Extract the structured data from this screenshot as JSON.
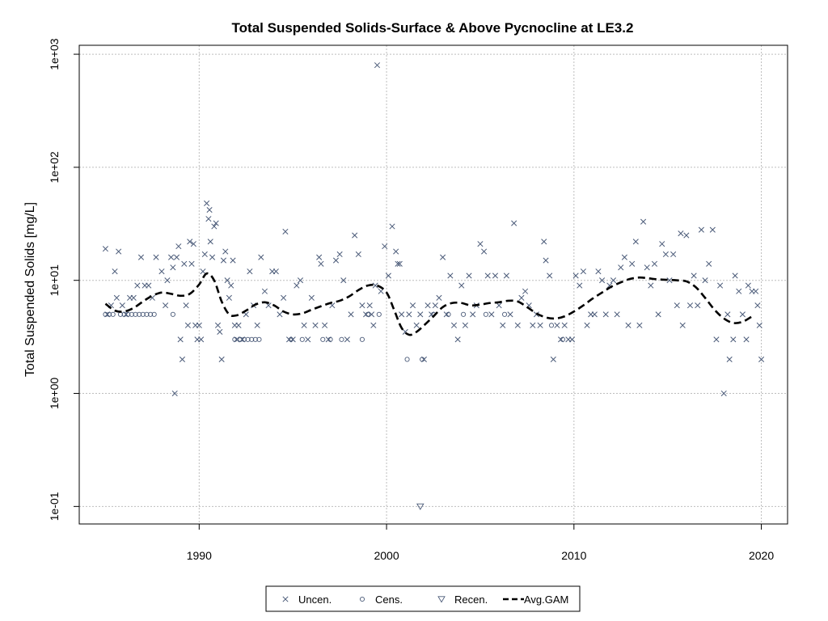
{
  "chart_data": {
    "type": "scatter",
    "title": "Total Suspended Solids-Surface & Above Pycnocline at LE3.2",
    "xlabel": "",
    "ylabel": "Total Suspended Solids [mg/L]",
    "xlim": [
      1983.6,
      2021.4
    ],
    "ylim": [
      0.07,
      1200
    ],
    "y_scale": "log",
    "x_ticks": [
      1990,
      2000,
      2010,
      2020
    ],
    "x_tick_labels": [
      "1990",
      "2000",
      "2010",
      "2020"
    ],
    "y_ticks": [
      0.1,
      1,
      10,
      100,
      1000
    ],
    "y_tick_labels": [
      "1e-01",
      "1e+00",
      "1e+01",
      "1e+02",
      "1e+03"
    ],
    "grid": true,
    "legend_position": "bottom",
    "colors": {
      "points": "#4a5a78",
      "gam": "#000000",
      "grid": "#bdbdbd"
    },
    "legend": [
      {
        "label": "Uncen.",
        "symbol": "x"
      },
      {
        "label": "Cens.",
        "symbol": "circle"
      },
      {
        "label": "Recen.",
        "symbol": "triangle-down"
      },
      {
        "label": "Avg.GAM",
        "symbol": "dashed-line"
      }
    ],
    "series": [
      {
        "name": "Uncen.",
        "marker": "x",
        "points": [
          [
            1985.0,
            19
          ],
          [
            1985.1,
            5
          ],
          [
            1985.3,
            6
          ],
          [
            1985.5,
            12
          ],
          [
            1985.6,
            7
          ],
          [
            1985.7,
            18
          ],
          [
            1985.9,
            6
          ],
          [
            1986.1,
            5
          ],
          [
            1986.3,
            7
          ],
          [
            1986.5,
            7
          ],
          [
            1986.7,
            9
          ],
          [
            1986.9,
            16
          ],
          [
            1987.1,
            9
          ],
          [
            1987.3,
            9
          ],
          [
            1987.5,
            7
          ],
          [
            1987.7,
            16
          ],
          [
            1988.0,
            12
          ],
          [
            1988.2,
            6
          ],
          [
            1988.3,
            10
          ],
          [
            1988.5,
            16
          ],
          [
            1988.6,
            13
          ],
          [
            1988.7,
            1
          ],
          [
            1988.8,
            16
          ],
          [
            1988.9,
            20
          ],
          [
            1989.0,
            3
          ],
          [
            1989.1,
            2
          ],
          [
            1989.2,
            14
          ],
          [
            1989.3,
            6
          ],
          [
            1989.4,
            4
          ],
          [
            1989.5,
            22
          ],
          [
            1989.6,
            14
          ],
          [
            1989.7,
            21
          ],
          [
            1989.8,
            4
          ],
          [
            1989.9,
            3
          ],
          [
            1990.0,
            4
          ],
          [
            1990.1,
            3
          ],
          [
            1990.2,
            12
          ],
          [
            1990.3,
            17
          ],
          [
            1990.4,
            48
          ],
          [
            1990.5,
            35
          ],
          [
            1990.55,
            42
          ],
          [
            1990.6,
            22
          ],
          [
            1990.7,
            16
          ],
          [
            1990.8,
            30
          ],
          [
            1990.9,
            32
          ],
          [
            1991.0,
            4
          ],
          [
            1991.1,
            3.5
          ],
          [
            1991.2,
            2
          ],
          [
            1991.3,
            15
          ],
          [
            1991.4,
            18
          ],
          [
            1991.5,
            10
          ],
          [
            1991.6,
            7
          ],
          [
            1991.7,
            9
          ],
          [
            1991.8,
            15
          ],
          [
            1991.9,
            4
          ],
          [
            1992.0,
            3
          ],
          [
            1992.1,
            4
          ],
          [
            1992.3,
            3
          ],
          [
            1992.5,
            5
          ],
          [
            1992.7,
            12
          ],
          [
            1992.9,
            6
          ],
          [
            1993.1,
            4
          ],
          [
            1993.3,
            16
          ],
          [
            1993.5,
            8
          ],
          [
            1993.7,
            6
          ],
          [
            1993.9,
            12
          ],
          [
            1994.1,
            12
          ],
          [
            1994.3,
            5
          ],
          [
            1994.5,
            7
          ],
          [
            1994.6,
            27
          ],
          [
            1994.8,
            3
          ],
          [
            1995.0,
            3
          ],
          [
            1995.2,
            9
          ],
          [
            1995.4,
            10
          ],
          [
            1995.6,
            4
          ],
          [
            1995.8,
            3
          ],
          [
            1996.0,
            7
          ],
          [
            1996.2,
            4
          ],
          [
            1996.4,
            16
          ],
          [
            1996.5,
            14
          ],
          [
            1996.7,
            4
          ],
          [
            1996.9,
            3
          ],
          [
            1997.1,
            6
          ],
          [
            1997.3,
            15
          ],
          [
            1997.5,
            17
          ],
          [
            1997.7,
            10
          ],
          [
            1997.9,
            3
          ],
          [
            1998.1,
            5
          ],
          [
            1998.3,
            25
          ],
          [
            1998.5,
            17
          ],
          [
            1998.7,
            6
          ],
          [
            1998.9,
            5
          ],
          [
            1999.1,
            6
          ],
          [
            1999.2,
            5
          ],
          [
            1999.3,
            4
          ],
          [
            1999.4,
            9
          ],
          [
            1999.5,
            800
          ],
          [
            1999.7,
            8
          ],
          [
            1999.9,
            20
          ],
          [
            2000.1,
            11
          ],
          [
            2000.3,
            30
          ],
          [
            2000.5,
            18
          ],
          [
            2000.6,
            14
          ],
          [
            2000.7,
            14
          ],
          [
            2000.8,
            5
          ],
          [
            2001.0,
            3.5
          ],
          [
            2001.2,
            5
          ],
          [
            2001.4,
            6
          ],
          [
            2001.6,
            4
          ],
          [
            2001.8,
            5
          ],
          [
            2002.0,
            2
          ],
          [
            2002.2,
            6
          ],
          [
            2002.4,
            5
          ],
          [
            2002.6,
            6
          ],
          [
            2002.8,
            7
          ],
          [
            2003.0,
            16
          ],
          [
            2003.2,
            5
          ],
          [
            2003.4,
            11
          ],
          [
            2003.6,
            4
          ],
          [
            2003.8,
            3
          ],
          [
            2004.0,
            9
          ],
          [
            2004.2,
            4
          ],
          [
            2004.4,
            11
          ],
          [
            2004.6,
            5
          ],
          [
            2004.8,
            6
          ],
          [
            2005.0,
            21
          ],
          [
            2005.2,
            18
          ],
          [
            2005.4,
            11
          ],
          [
            2005.6,
            5
          ],
          [
            2005.8,
            11
          ],
          [
            2006.0,
            6
          ],
          [
            2006.2,
            4
          ],
          [
            2006.4,
            11
          ],
          [
            2006.6,
            5
          ],
          [
            2006.8,
            32
          ],
          [
            2007.0,
            4
          ],
          [
            2007.2,
            7
          ],
          [
            2007.4,
            8
          ],
          [
            2007.6,
            6
          ],
          [
            2007.8,
            4
          ],
          [
            2008.0,
            5
          ],
          [
            2008.2,
            4
          ],
          [
            2008.4,
            22
          ],
          [
            2008.5,
            15
          ],
          [
            2008.7,
            11
          ],
          [
            2008.9,
            2
          ],
          [
            2009.1,
            4
          ],
          [
            2009.3,
            3
          ],
          [
            2009.5,
            4
          ],
          [
            2009.7,
            3
          ],
          [
            2009.9,
            3
          ],
          [
            2010.1,
            11
          ],
          [
            2010.3,
            9
          ],
          [
            2010.5,
            12
          ],
          [
            2010.7,
            4
          ],
          [
            2010.9,
            5
          ],
          [
            2011.1,
            5
          ],
          [
            2011.3,
            12
          ],
          [
            2011.5,
            10
          ],
          [
            2011.7,
            5
          ],
          [
            2011.9,
            9
          ],
          [
            2012.1,
            10
          ],
          [
            2012.3,
            5
          ],
          [
            2012.5,
            13
          ],
          [
            2012.7,
            16
          ],
          [
            2012.9,
            4
          ],
          [
            2013.1,
            14
          ],
          [
            2013.3,
            22
          ],
          [
            2013.5,
            4
          ],
          [
            2013.7,
            33
          ],
          [
            2013.9,
            13
          ],
          [
            2014.1,
            9
          ],
          [
            2014.3,
            14
          ],
          [
            2014.5,
            5
          ],
          [
            2014.7,
            21
          ],
          [
            2014.9,
            17
          ],
          [
            2015.1,
            10
          ],
          [
            2015.3,
            17
          ],
          [
            2015.5,
            6
          ],
          [
            2015.7,
            26
          ],
          [
            2015.8,
            4
          ],
          [
            2016.0,
            25
          ],
          [
            2016.2,
            6
          ],
          [
            2016.4,
            11
          ],
          [
            2016.6,
            6
          ],
          [
            2016.8,
            28
          ],
          [
            2017.0,
            10
          ],
          [
            2017.2,
            14
          ],
          [
            2017.4,
            28
          ],
          [
            2017.6,
            3
          ],
          [
            2017.8,
            9
          ],
          [
            2018.0,
            1
          ],
          [
            2018.2,
            5
          ],
          [
            2018.3,
            2
          ],
          [
            2018.5,
            3
          ],
          [
            2018.6,
            11
          ],
          [
            2018.8,
            8
          ],
          [
            2019.0,
            5
          ],
          [
            2019.2,
            3
          ],
          [
            2019.3,
            9
          ],
          [
            2019.5,
            8
          ],
          [
            2019.7,
            8
          ],
          [
            2019.8,
            6
          ],
          [
            2019.9,
            4
          ],
          [
            2020.0,
            2
          ]
        ]
      },
      {
        "name": "Cens.",
        "marker": "circle",
        "points": [
          [
            1985.0,
            5
          ],
          [
            1985.2,
            5
          ],
          [
            1985.4,
            5
          ],
          [
            1985.8,
            5
          ],
          [
            1986.0,
            5
          ],
          [
            1986.2,
            5
          ],
          [
            1986.4,
            5
          ],
          [
            1986.6,
            5
          ],
          [
            1986.8,
            5
          ],
          [
            1987.0,
            5
          ],
          [
            1987.2,
            5
          ],
          [
            1987.4,
            5
          ],
          [
            1987.6,
            5
          ],
          [
            1988.6,
            5
          ],
          [
            1991.9,
            3
          ],
          [
            1992.2,
            3
          ],
          [
            1992.4,
            3
          ],
          [
            1992.6,
            3
          ],
          [
            1992.8,
            3
          ],
          [
            1993.0,
            3
          ],
          [
            1993.2,
            3
          ],
          [
            1994.9,
            3
          ],
          [
            1995.5,
            3
          ],
          [
            1996.6,
            3
          ],
          [
            1997.0,
            3
          ],
          [
            1997.6,
            3
          ],
          [
            1998.7,
            3
          ],
          [
            1999.0,
            5
          ],
          [
            1999.6,
            5
          ],
          [
            2001.1,
            2
          ],
          [
            2001.9,
            2
          ],
          [
            2002.5,
            5
          ],
          [
            2003.3,
            5
          ],
          [
            2004.1,
            5
          ],
          [
            2005.3,
            5
          ],
          [
            2006.3,
            5
          ],
          [
            2008.8,
            4
          ],
          [
            2009.4,
            3
          ]
        ]
      },
      {
        "name": "Recen.",
        "marker": "triangle-down",
        "points": [
          [
            2001.8,
            0.1
          ]
        ]
      }
    ],
    "gam": {
      "name": "Avg.GAM",
      "x": [
        1985.0,
        1985.5,
        1986.0,
        1986.5,
        1987.0,
        1987.5,
        1988.0,
        1988.5,
        1989.0,
        1989.5,
        1990.0,
        1990.4,
        1990.8,
        1991.2,
        1991.6,
        1992.0,
        1992.5,
        1993.0,
        1993.5,
        1994.0,
        1994.5,
        1995.0,
        1995.5,
        1996.0,
        1996.5,
        1997.0,
        1997.5,
        1998.0,
        1998.5,
        1999.0,
        1999.5,
        2000.0,
        2000.4,
        2000.8,
        2001.2,
        2001.6,
        2002.0,
        2002.5,
        2003.0,
        2003.5,
        2004.0,
        2004.5,
        2005.0,
        2005.5,
        2006.0,
        2006.5,
        2007.0,
        2007.5,
        2008.0,
        2008.5,
        2009.0,
        2009.5,
        2010.0,
        2010.5,
        2011.0,
        2011.5,
        2012.0,
        2012.5,
        2013.0,
        2013.5,
        2014.0,
        2014.5,
        2015.0,
        2015.5,
        2016.0,
        2016.5,
        2017.0,
        2017.5,
        2018.0,
        2018.5,
        2019.0,
        2019.5
      ],
      "y": [
        6.2,
        5.4,
        5.3,
        5.7,
        6.5,
        7.3,
        7.8,
        7.6,
        7.3,
        7.6,
        9.2,
        11.5,
        10.0,
        6.5,
        5.0,
        4.9,
        5.4,
        6.1,
        6.4,
        6.0,
        5.3,
        5.0,
        5.1,
        5.5,
        5.9,
        6.3,
        6.6,
        7.2,
        8.2,
        9.0,
        9.0,
        7.8,
        5.5,
        3.8,
        3.3,
        3.5,
        4.0,
        4.8,
        5.8,
        6.3,
        6.3,
        6.0,
        6.1,
        6.3,
        6.4,
        6.6,
        6.5,
        5.8,
        5.1,
        4.7,
        4.6,
        4.8,
        5.3,
        6.0,
        6.9,
        7.8,
        8.8,
        9.6,
        10.3,
        10.6,
        10.4,
        10.2,
        10.1,
        10.0,
        9.8,
        8.7,
        7.0,
        5.5,
        4.6,
        4.2,
        4.3,
        4.8
      ]
    }
  }
}
